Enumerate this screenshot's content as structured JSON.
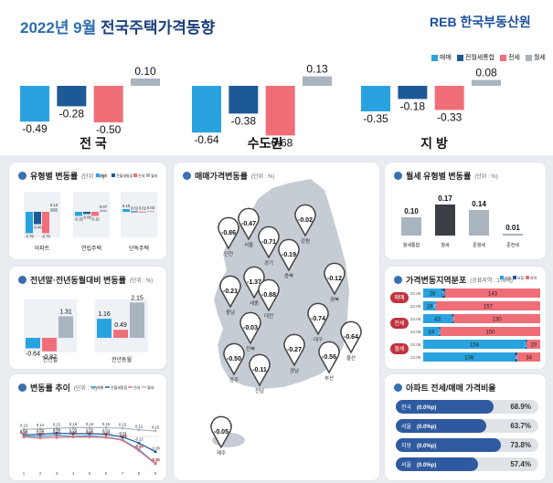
{
  "header": {
    "title_year": "2022년 9월",
    "title_main": "전국주택가격동향",
    "logo": "REB 한국부동산원",
    "legend": [
      "매매",
      "전월세통합",
      "전세",
      "월세"
    ]
  },
  "colors": {
    "sale": "#29a3e0",
    "combined": "#1d5a95",
    "jeonse": "#f06e78",
    "wolse": "#a9b4bf",
    "navy": "#1a3f7a"
  },
  "chart_data": [
    {
      "type": "bar",
      "title": "",
      "categories": [
        "전 국",
        "수도권",
        "지 방"
      ],
      "series": [
        {
          "name": "매매",
          "values": [
            -0.49,
            -0.64,
            -0.35
          ]
        },
        {
          "name": "전월세통합",
          "values": [
            -0.28,
            -0.38,
            -0.18
          ]
        },
        {
          "name": "전세",
          "values": [
            -0.5,
            -0.68,
            -0.33
          ]
        },
        {
          "name": "월세",
          "values": [
            0.1,
            0.13,
            0.08
          ]
        }
      ]
    },
    {
      "type": "bar",
      "title": "유형별 변동률",
      "unit": "(단위 : %)",
      "legend": [
        "매매",
        "전월세통합",
        "전세",
        "월세"
      ],
      "categories": [
        "아파트",
        "연립주택",
        "단독주택"
      ],
      "series": [
        {
          "name": "매매",
          "values": [
            -0.78,
            -0.15,
            0.1
          ]
        },
        {
          "name": "전월세통합",
          "values": [
            -0.45,
            -0.08,
            0.02
          ]
        },
        {
          "name": "전세",
          "values": [
            -0.78,
            -0.15,
            0.01
          ]
        },
        {
          "name": "월세",
          "values": [
            0.13,
            0.07,
            0.03
          ]
        }
      ]
    },
    {
      "type": "bar",
      "title": "전년말·전년동월대비 변동률",
      "unit": "(단위 : %)",
      "categories": [
        "전년말",
        "전년동월"
      ],
      "series": [
        {
          "name": "매매",
          "values": [
            -0.64,
            1.16
          ]
        },
        {
          "name": "전세",
          "values": [
            -0.82,
            0.49
          ]
        },
        {
          "name": "월세",
          "values": [
            1.31,
            2.15
          ]
        }
      ]
    },
    {
      "type": "line",
      "title": "변동률 추이",
      "unit": "(단위 : %)",
      "legend": [
        "매매",
        "전월세통합",
        "전세",
        "월세"
      ],
      "x": [
        "1",
        "2",
        "3",
        "4",
        "5",
        "6",
        "7",
        "8",
        "9"
      ],
      "series": [
        {
          "name": "월세",
          "values": [
            0.13,
            0.14,
            0.15,
            0.16,
            0.16,
            0.16,
            0.15,
            0.12,
            0.1
          ]
        },
        {
          "name": "전월세통합",
          "values": [
            0.03,
            0.04,
            0.06,
            0.05,
            0.05,
            0.04,
            -0.01,
            -0.12,
            -0.28
          ]
        },
        {
          "name": "매매",
          "values": [
            0.01,
            0.0,
            0.02,
            0.0,
            0.01,
            -0.01,
            -0.06,
            -0.24,
            -0.49
          ]
        },
        {
          "name": "전세",
          "values": [
            -0.01,
            -0.03,
            -0.02,
            -0.01,
            -0.01,
            -0.02,
            -0.07,
            -0.26,
            -0.5
          ]
        }
      ]
    },
    {
      "type": "bar",
      "title": "월세 유형별 변동률",
      "unit": "(단위 : %)",
      "categories": [
        "월세통합",
        "월세",
        "준월세",
        "준전세"
      ],
      "values": [
        0.1,
        0.17,
        0.14,
        0.01
      ]
    },
    {
      "type": "bar",
      "title": "가격변동지역분포",
      "unit": "(공표지역 : 176개)",
      "legend": [
        "상승",
        "보합",
        "하락"
      ],
      "groups": [
        "매매",
        "전세",
        "월세"
      ],
      "rows": [
        {
          "group": "매매",
          "period": "22.08",
          "up": 28,
          "flat": 5,
          "down": 143
        },
        {
          "group": "매매",
          "period": "22.09",
          "up": 19,
          "flat": 0,
          "down": 157
        },
        {
          "group": "전세",
          "period": "22.08",
          "up": 43,
          "flat": 3,
          "down": 130
        },
        {
          "group": "전세",
          "period": "22.09",
          "up": 24,
          "flat": 2,
          "down": 150
        },
        {
          "group": "월세",
          "period": "22.08",
          "up": 154,
          "flat": 2,
          "down": 20
        },
        {
          "group": "월세",
          "period": "22.09",
          "up": 138,
          "flat": 4,
          "down": 34
        }
      ]
    },
    {
      "type": "bar",
      "title": "아파트 전세/매매 가격비율",
      "categories": [
        "전국",
        "서울",
        "지방",
        "서울"
      ],
      "changes": [
        "(0.0%p)",
        "(0.0%p)",
        "(0.0%p)",
        "(0.0%p)"
      ],
      "values": [
        68.9,
        63.7,
        73.8,
        57.4
      ]
    }
  ],
  "map": {
    "title": "매매가격변동률",
    "unit": "(단위 : %)",
    "regions": [
      {
        "name": "인천",
        "value": -0.86
      },
      {
        "name": "서울",
        "value": -0.47
      },
      {
        "name": "경기",
        "value": -0.71
      },
      {
        "name": "강원",
        "value": -0.02
      },
      {
        "name": "충북",
        "value": -0.19
      },
      {
        "name": "세종",
        "value": -1.37
      },
      {
        "name": "충남",
        "value": -0.21
      },
      {
        "name": "대전",
        "value": -0.88
      },
      {
        "name": "경북",
        "value": -0.12
      },
      {
        "name": "전북",
        "value": -0.03
      },
      {
        "name": "대구",
        "value": -0.74
      },
      {
        "name": "울산",
        "value": -0.64
      },
      {
        "name": "경남",
        "value": -0.27
      },
      {
        "name": "부산",
        "value": -0.56
      },
      {
        "name": "광주",
        "value": -0.5
      },
      {
        "name": "전남",
        "value": -0.11
      },
      {
        "name": "제주",
        "value": -0.05
      }
    ]
  }
}
